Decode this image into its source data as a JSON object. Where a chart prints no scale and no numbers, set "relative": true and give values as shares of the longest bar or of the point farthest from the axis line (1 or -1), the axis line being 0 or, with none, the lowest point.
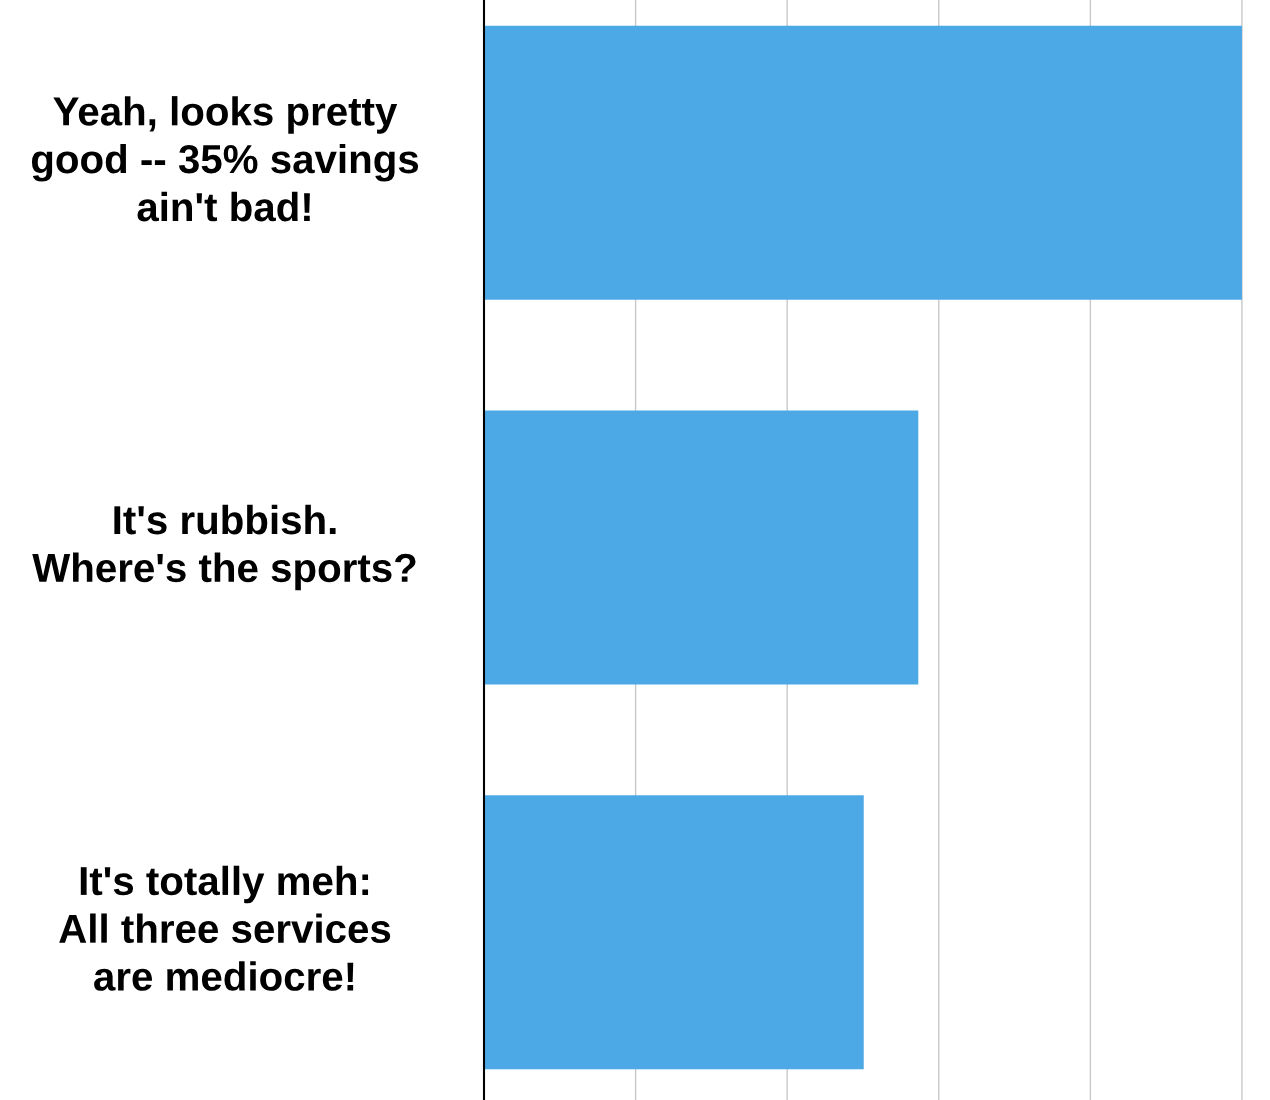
{
  "chart_data": {
    "type": "bar",
    "orientation": "horizontal",
    "relative": true,
    "categories": [
      "Yeah, looks pretty\ngood -- 35% savings\nain't bad!",
      "It's rubbish.\nWhere's the sports?",
      "It's totally meh:\nAll three services\nare mediocre!"
    ],
    "values": [
      1.0,
      0.573,
      0.501
    ],
    "color": "#4ca9e6",
    "grid": "x"
  }
}
